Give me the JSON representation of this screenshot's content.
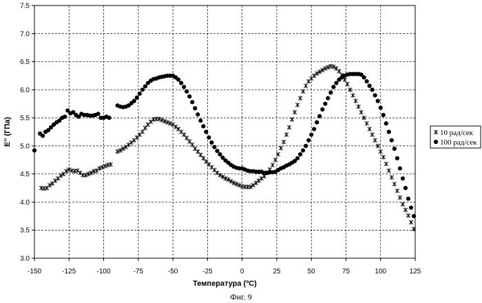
{
  "caption": "Фиг. 9",
  "chart_data": {
    "type": "scatter",
    "xlabel": "Температура (ºC)",
    "ylabel": "E'' (ГПа)",
    "xlim": [
      -150,
      125
    ],
    "ylim": [
      3.0,
      7.5
    ],
    "xticks": [
      "-150",
      "-125",
      "-100",
      "-75",
      "-50",
      "-25",
      "0",
      "25",
      "50",
      "75",
      "100",
      "125"
    ],
    "xtick_values": [
      -150,
      -125,
      -100,
      -75,
      -50,
      -25,
      0,
      25,
      50,
      75,
      100,
      125
    ],
    "yticks": [
      "3.0",
      "3.5",
      "4.0",
      "4.5",
      "5.0",
      "5.5",
      "6.0",
      "6.5",
      "7.0",
      "7.5"
    ],
    "ytick_values": [
      3.0,
      3.5,
      4.0,
      4.5,
      5.0,
      5.5,
      6.0,
      6.5,
      7.0,
      7.5
    ],
    "grid": "dashed",
    "legend_position": "right",
    "series": [
      {
        "name": "10 рад/сек",
        "marker": "asterisk",
        "color": "#000000",
        "x": [
          -145,
          -143,
          -141,
          -139,
          -137,
          -135,
          -133,
          -131,
          -129,
          -127,
          -125,
          -123,
          -121,
          -119,
          -117,
          -115,
          -113,
          -111,
          -109,
          -107,
          -105,
          -103,
          -101,
          -99,
          -97,
          -95,
          -90,
          -88,
          -86,
          -84,
          -82,
          -80,
          -78,
          -76,
          -74,
          -72,
          -70,
          -68,
          -66,
          -64,
          -62,
          -60,
          -58,
          -56,
          -54,
          -52,
          -50,
          -48,
          -46,
          -44,
          -42,
          -40,
          -38,
          -36,
          -34,
          -32,
          -30,
          -28,
          -26,
          -24,
          -22,
          -20,
          -18,
          -16,
          -14,
          -12,
          -10,
          -8,
          -6,
          -4,
          -2,
          0,
          2,
          4,
          6,
          8,
          10,
          12,
          14,
          16,
          18,
          20,
          22,
          24,
          26,
          28,
          30,
          32,
          34,
          36,
          38,
          40,
          42,
          44,
          46,
          48,
          50,
          52,
          54,
          56,
          58,
          60,
          62,
          64,
          66,
          68,
          70,
          72,
          74,
          76,
          78,
          80,
          82,
          84,
          86,
          88,
          90,
          92,
          94,
          96,
          98,
          100,
          102,
          104,
          106,
          108,
          110,
          112,
          114,
          116,
          118,
          120,
          122,
          124
        ],
        "y": [
          4.25,
          4.24,
          4.25,
          4.3,
          4.33,
          4.38,
          4.42,
          4.47,
          4.5,
          4.55,
          4.58,
          4.56,
          4.55,
          4.56,
          4.52,
          4.48,
          4.48,
          4.5,
          4.52,
          4.55,
          4.56,
          4.6,
          4.62,
          4.64,
          4.66,
          4.67,
          4.9,
          4.92,
          4.95,
          4.98,
          5.02,
          5.06,
          5.1,
          5.15,
          5.2,
          5.25,
          5.32,
          5.38,
          5.43,
          5.47,
          5.48,
          5.48,
          5.46,
          5.44,
          5.42,
          5.4,
          5.38,
          5.34,
          5.3,
          5.25,
          5.2,
          5.14,
          5.08,
          5.02,
          4.95,
          4.9,
          4.84,
          4.78,
          4.72,
          4.67,
          4.62,
          4.57,
          4.52,
          4.48,
          4.45,
          4.42,
          4.4,
          4.37,
          4.34,
          4.32,
          4.3,
          4.28,
          4.27,
          4.27,
          4.27,
          4.3,
          4.34,
          4.38,
          4.42,
          4.46,
          4.52,
          4.58,
          4.66,
          4.75,
          4.85,
          4.96,
          5.07,
          5.2,
          5.33,
          5.47,
          5.6,
          5.73,
          5.85,
          5.97,
          6.07,
          6.15,
          6.2,
          6.25,
          6.29,
          6.32,
          6.35,
          6.38,
          6.4,
          6.42,
          6.41,
          6.38,
          6.33,
          6.26,
          6.18,
          6.1,
          6.0,
          5.9,
          5.8,
          5.7,
          5.6,
          5.5,
          5.4,
          5.3,
          5.2,
          5.1,
          5.0,
          4.9,
          4.8,
          4.68,
          4.56,
          4.44,
          4.32,
          4.2,
          4.08,
          3.96,
          3.86,
          3.76,
          3.64,
          3.52
        ]
      },
      {
        "name": "100 рад/сек",
        "marker": "circle",
        "color": "#000000",
        "x": [
          -150,
          -146,
          -144,
          -142,
          -140,
          -138,
          -136,
          -134,
          -132,
          -130,
          -128,
          -126,
          -124,
          -122,
          -120,
          -118,
          -116,
          -114,
          -112,
          -110,
          -108,
          -106,
          -104,
          -102,
          -100,
          -98,
          -96,
          -90,
          -88,
          -86,
          -84,
          -82,
          -80,
          -78,
          -76,
          -74,
          -72,
          -70,
          -68,
          -66,
          -64,
          -62,
          -60,
          -58,
          -56,
          -54,
          -52,
          -50,
          -48,
          -46,
          -44,
          -42,
          -40,
          -38,
          -36,
          -34,
          -32,
          -30,
          -28,
          -26,
          -24,
          -22,
          -20,
          -18,
          -16,
          -14,
          -12,
          -10,
          -8,
          -6,
          -4,
          -2,
          0,
          2,
          4,
          6,
          8,
          10,
          12,
          14,
          16,
          18,
          20,
          22,
          24,
          26,
          28,
          30,
          32,
          34,
          36,
          38,
          40,
          42,
          44,
          46,
          48,
          50,
          52,
          54,
          56,
          58,
          60,
          62,
          64,
          66,
          68,
          70,
          72,
          74,
          76,
          78,
          80,
          82,
          84,
          86,
          88,
          90,
          92,
          94,
          96,
          98,
          100,
          102,
          104,
          106,
          108,
          110,
          112,
          114,
          116,
          118,
          120,
          122,
          124
        ],
        "y": [
          4.92,
          5.22,
          5.18,
          5.25,
          5.28,
          5.33,
          5.38,
          5.42,
          5.45,
          5.5,
          5.52,
          5.63,
          5.58,
          5.6,
          5.55,
          5.52,
          5.57,
          5.55,
          5.55,
          5.54,
          5.54,
          5.55,
          5.57,
          5.5,
          5.5,
          5.52,
          5.5,
          5.72,
          5.7,
          5.69,
          5.7,
          5.72,
          5.76,
          5.8,
          5.86,
          5.93,
          6.0,
          6.06,
          6.12,
          6.16,
          6.19,
          6.2,
          6.22,
          6.23,
          6.24,
          6.25,
          6.25,
          6.25,
          6.22,
          6.18,
          6.12,
          6.05,
          5.97,
          5.88,
          5.78,
          5.67,
          5.56,
          5.45,
          5.35,
          5.25,
          5.15,
          5.06,
          4.98,
          4.91,
          4.85,
          4.79,
          4.74,
          4.7,
          4.66,
          4.63,
          4.61,
          4.6,
          4.6,
          4.58,
          4.56,
          4.55,
          4.55,
          4.54,
          4.54,
          4.54,
          4.52,
          4.52,
          4.53,
          4.53,
          4.54,
          4.57,
          4.6,
          4.62,
          4.65,
          4.67,
          4.7,
          4.73,
          4.78,
          4.85,
          4.92,
          5.0,
          5.1,
          5.2,
          5.3,
          5.42,
          5.53,
          5.65,
          5.75,
          5.85,
          5.95,
          6.05,
          6.12,
          6.18,
          6.22,
          6.25,
          6.27,
          6.28,
          6.28,
          6.28,
          6.28,
          6.27,
          6.22,
          6.15,
          6.07,
          6.0,
          5.9,
          5.8,
          5.68,
          5.55,
          5.4,
          5.25,
          5.1,
          4.95,
          4.78,
          4.6,
          4.42,
          4.25,
          4.06,
          3.9,
          3.75
        ]
      }
    ]
  }
}
